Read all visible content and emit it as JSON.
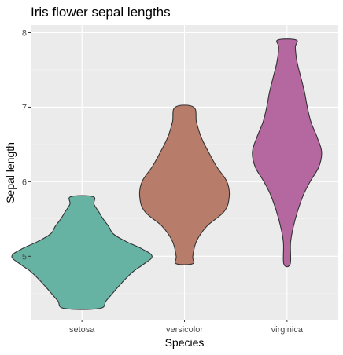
{
  "chart_data": {
    "type": "violin",
    "title": "Iris flower sepal lengths",
    "xlabel": "Species",
    "ylabel": "Sepal length",
    "categories": [
      "setosa",
      "versicolor",
      "virginica"
    ],
    "colors": [
      "#66b3a3",
      "#b87d6a",
      "#b5679f"
    ],
    "ylim": [
      4.15,
      8.1
    ],
    "yticks": [
      5,
      6,
      7,
      8
    ],
    "grid": true,
    "legend": "none",
    "violins": [
      {
        "category": "setosa",
        "min": 4.3,
        "max": 5.8,
        "profile": [
          [
            4.3,
            0.38
          ],
          [
            4.4,
            0.52
          ],
          [
            4.5,
            0.66
          ],
          [
            4.6,
            0.8
          ],
          [
            4.7,
            0.95
          ],
          [
            4.8,
            1.12
          ],
          [
            4.9,
            1.35
          ],
          [
            5.0,
            1.52
          ],
          [
            5.1,
            1.3
          ],
          [
            5.2,
            0.95
          ],
          [
            5.3,
            0.68
          ],
          [
            5.4,
            0.58
          ],
          [
            5.5,
            0.46
          ],
          [
            5.6,
            0.36
          ],
          [
            5.7,
            0.26
          ],
          [
            5.8,
            0.24
          ]
        ]
      },
      {
        "category": "versicolor",
        "min": 4.9,
        "max": 7.0,
        "profile": [
          [
            4.9,
            0.18
          ],
          [
            5.0,
            0.18
          ],
          [
            5.2,
            0.26
          ],
          [
            5.4,
            0.48
          ],
          [
            5.6,
            0.86
          ],
          [
            5.8,
            0.97
          ],
          [
            6.0,
            0.92
          ],
          [
            6.2,
            0.7
          ],
          [
            6.4,
            0.52
          ],
          [
            6.6,
            0.36
          ],
          [
            6.8,
            0.26
          ],
          [
            7.0,
            0.2
          ]
        ]
      },
      {
        "category": "virginica",
        "min": 4.9,
        "max": 7.9,
        "profile": [
          [
            4.9,
            0.07
          ],
          [
            5.2,
            0.08
          ],
          [
            5.5,
            0.18
          ],
          [
            5.8,
            0.34
          ],
          [
            6.0,
            0.5
          ],
          [
            6.2,
            0.69
          ],
          [
            6.4,
            0.75
          ],
          [
            6.6,
            0.65
          ],
          [
            6.8,
            0.52
          ],
          [
            7.0,
            0.44
          ],
          [
            7.2,
            0.38
          ],
          [
            7.4,
            0.3
          ],
          [
            7.6,
            0.22
          ],
          [
            7.8,
            0.18
          ],
          [
            7.9,
            0.2
          ]
        ]
      }
    ]
  }
}
